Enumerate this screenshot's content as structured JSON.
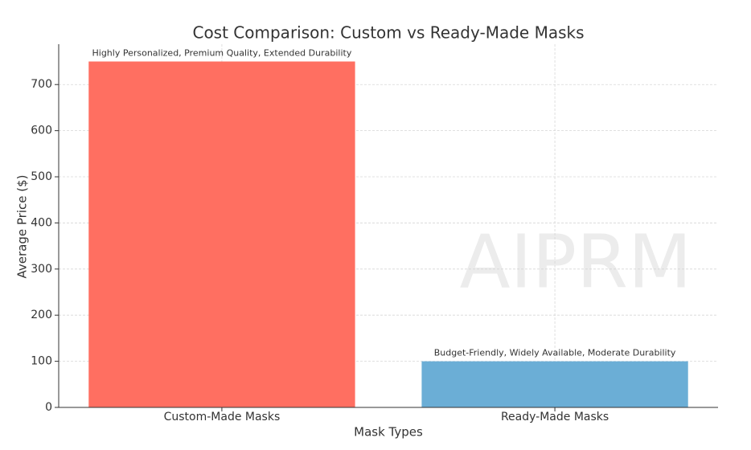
{
  "chart_data": {
    "type": "bar",
    "title": "Cost Comparison: Custom vs Ready-Made Masks",
    "xlabel": "Mask Types",
    "ylabel": "Average Price ($)",
    "categories": [
      "Custom-Made Masks",
      "Ready-Made Masks"
    ],
    "values": [
      750,
      100
    ],
    "colors": [
      "#ff6f61",
      "#6baed6"
    ],
    "bar_labels": [
      "Highly Personalized, Premium Quality, Extended Durability",
      "Budget-Friendly, Widely Available, Moderate Durability"
    ],
    "ylim": [
      0,
      787.5
    ],
    "yticks": [
      0,
      100,
      200,
      300,
      400,
      500,
      600,
      700
    ],
    "grid": true,
    "watermark": "AIPRM"
  }
}
